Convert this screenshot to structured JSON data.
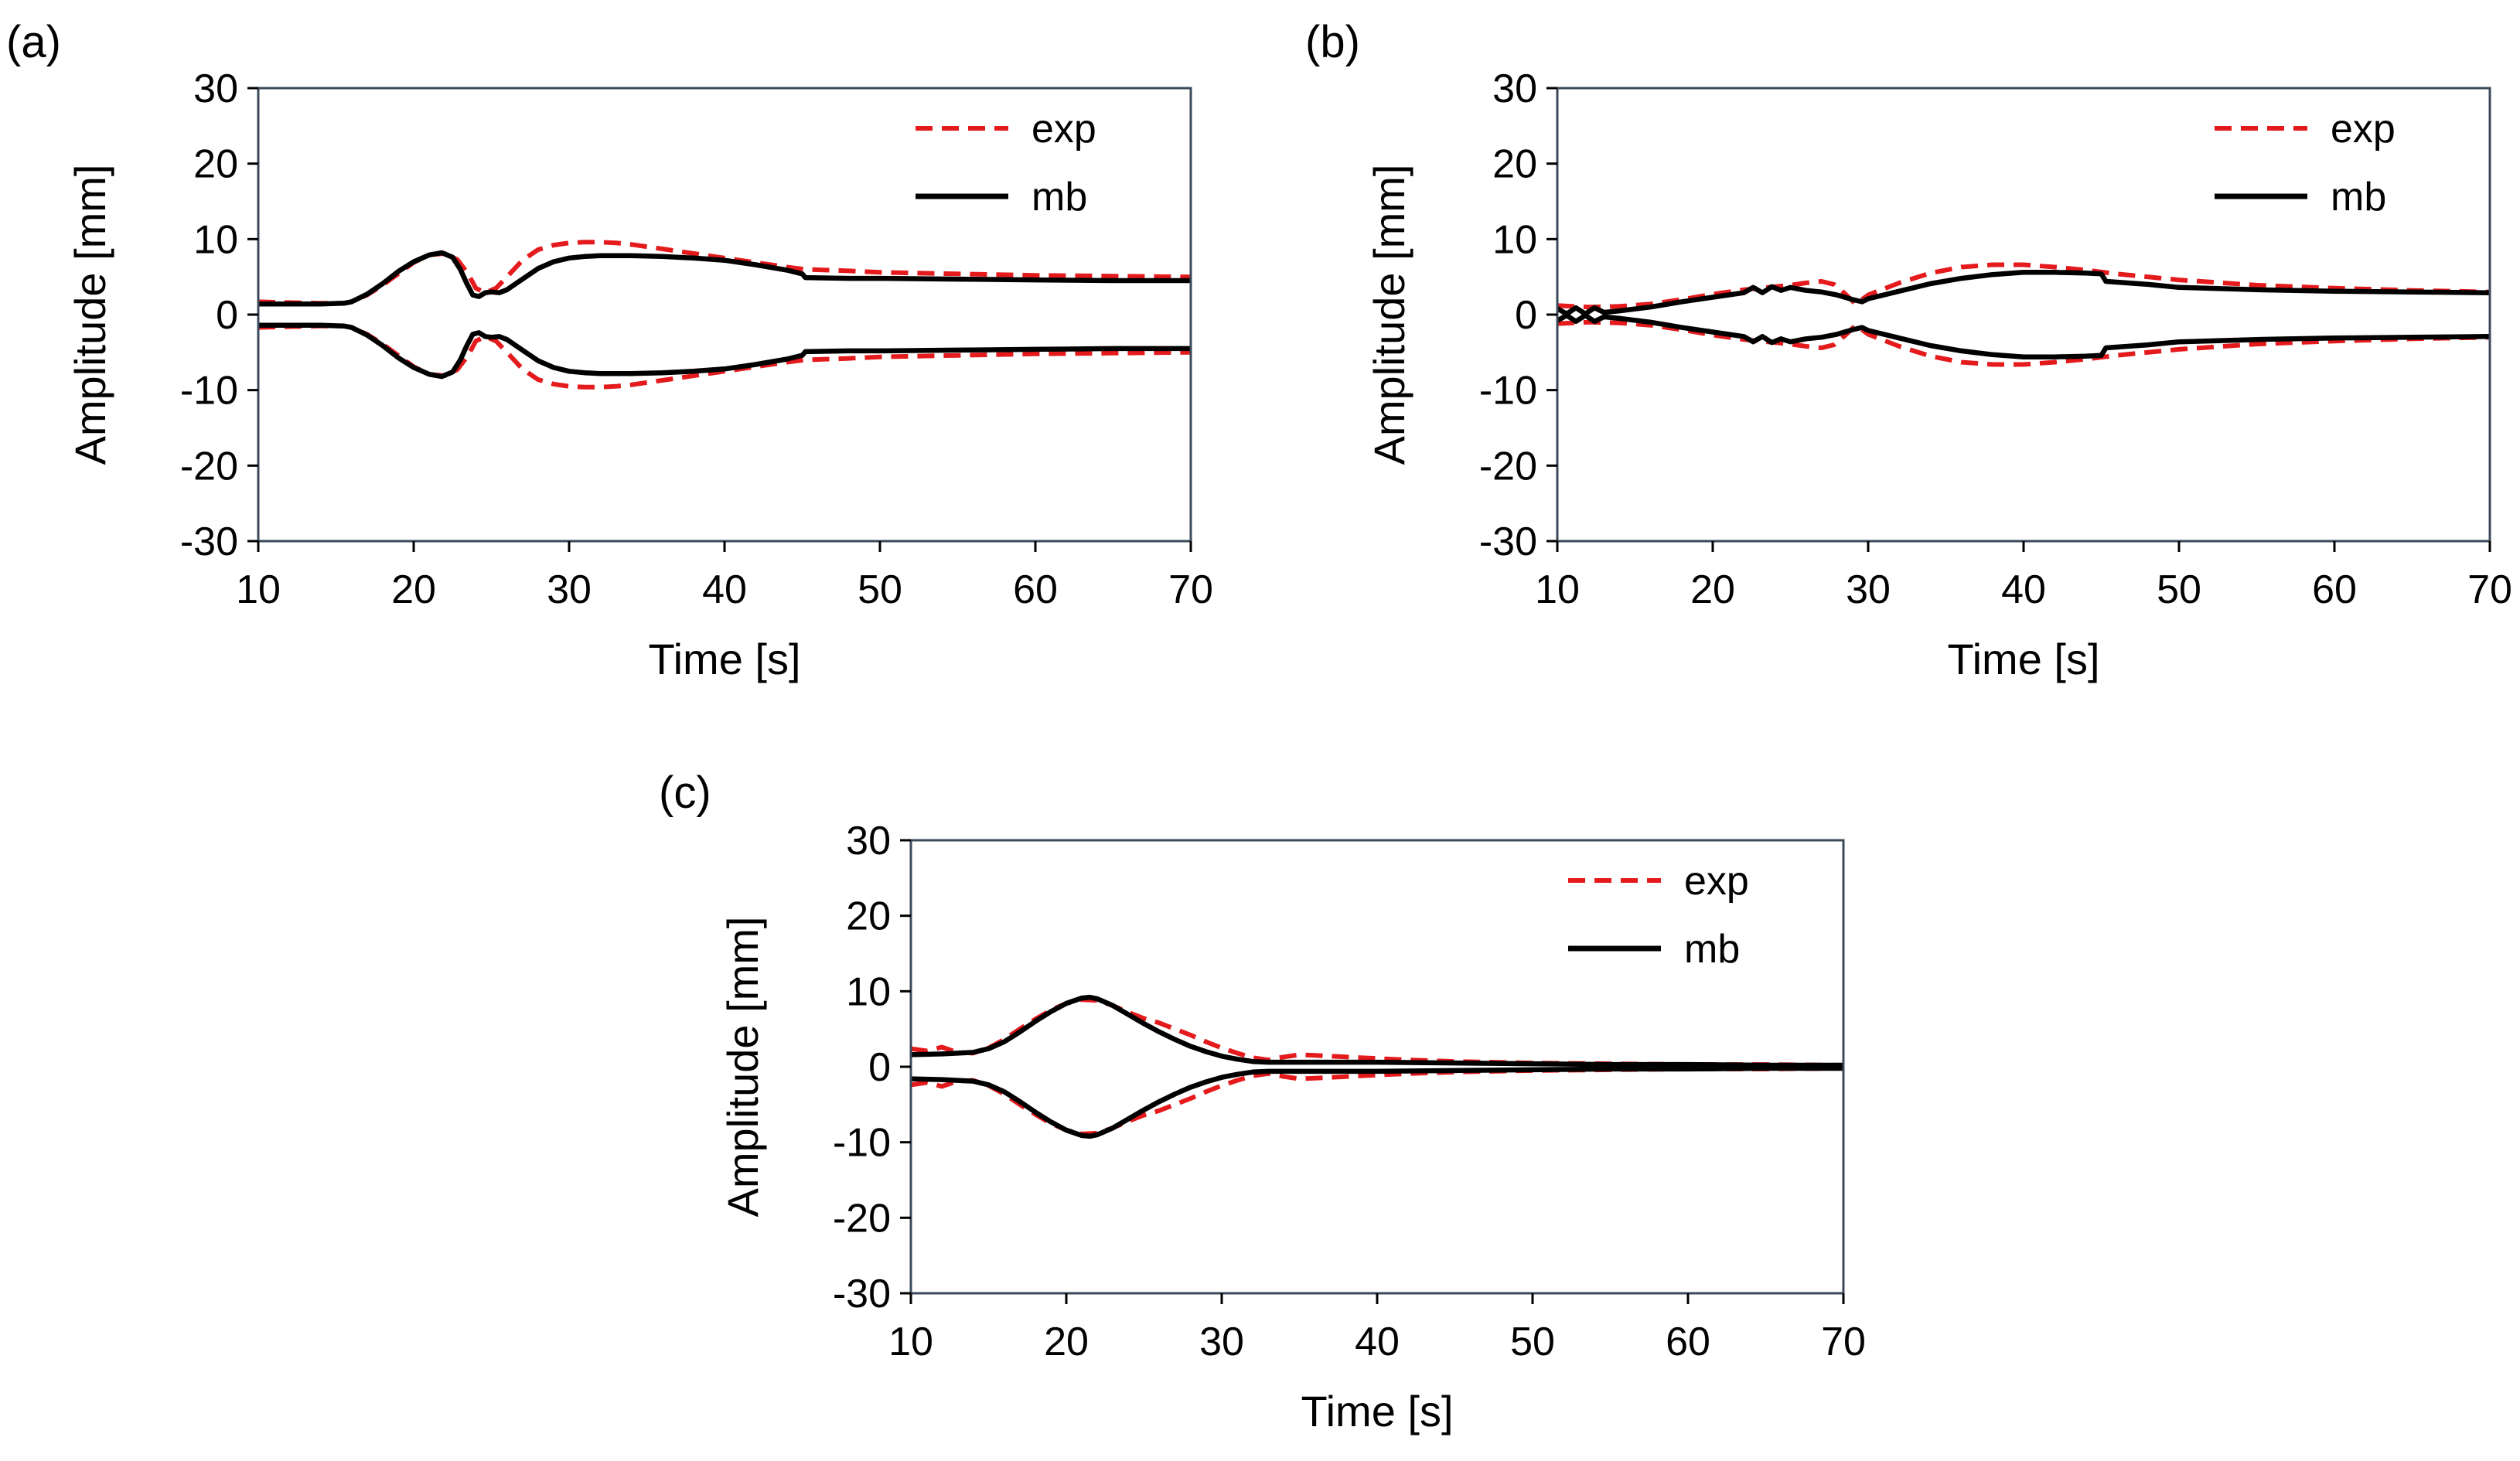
{
  "chart_data": [
    {
      "panel": "(a)",
      "type": "line",
      "xlabel": "Time [s]",
      "ylabel": "Amplitude [mm]",
      "xlim": [
        10,
        70
      ],
      "ylim": [
        -30,
        30
      ],
      "xticks": [
        10,
        20,
        30,
        40,
        50,
        60,
        70
      ],
      "yticks": [
        -30,
        -20,
        -10,
        0,
        10,
        20,
        30
      ],
      "legend": {
        "position": "top-right",
        "entries": [
          "exp",
          "mb"
        ]
      },
      "colors": {
        "exp": "#e41a1c",
        "mb": "#000000"
      },
      "series": [
        {
          "name": "exp",
          "style": "dashed",
          "mirror": true,
          "x": [
            10,
            12,
            14,
            15.5,
            16,
            17,
            18,
            19,
            20,
            21,
            22,
            22.8,
            23.5,
            24,
            24.6,
            25.3,
            26,
            27,
            28,
            29,
            30,
            31,
            32,
            33,
            34,
            35,
            36,
            38,
            40,
            42,
            44,
            45.2,
            48,
            50,
            55,
            60,
            65,
            70
          ],
          "y": [
            1.7,
            1.6,
            1.5,
            1.5,
            1.7,
            2.6,
            3.9,
            5.4,
            6.9,
            7.9,
            8.1,
            7.3,
            5.4,
            3.5,
            2.9,
            3.5,
            5,
            7.2,
            8.6,
            9.2,
            9.5,
            9.6,
            9.6,
            9.5,
            9.3,
            9,
            8.7,
            8.1,
            7.5,
            6.9,
            6.3,
            6,
            5.8,
            5.6,
            5.4,
            5.2,
            5.1,
            5
          ]
        },
        {
          "name": "mb",
          "style": "solid",
          "mirror": true,
          "x": [
            10,
            12,
            14,
            15.5,
            16,
            17,
            18,
            19,
            20,
            21,
            21.8,
            22.5,
            23,
            23.4,
            23.8,
            24.2,
            24.6,
            25,
            25.5,
            26,
            27,
            28,
            29,
            30,
            31,
            32,
            33,
            34,
            36,
            38,
            40,
            42,
            44,
            45,
            45.2,
            48,
            50,
            55,
            60,
            65,
            70
          ],
          "y": [
            1.4,
            1.4,
            1.4,
            1.5,
            1.7,
            2.7,
            4.1,
            5.7,
            7,
            7.9,
            8.2,
            7.6,
            6,
            4.2,
            2.6,
            2.4,
            2.9,
            3,
            2.9,
            3.3,
            4.7,
            6.1,
            7,
            7.5,
            7.7,
            7.8,
            7.8,
            7.8,
            7.7,
            7.5,
            7.2,
            6.6,
            5.9,
            5.4,
            4.9,
            4.8,
            4.8,
            4.7,
            4.6,
            4.5,
            4.5
          ]
        }
      ]
    },
    {
      "panel": "(b)",
      "type": "line",
      "xlabel": "Time [s]",
      "ylabel": "Amplitude [mm]",
      "xlim": [
        10,
        70
      ],
      "ylim": [
        -30,
        30
      ],
      "xticks": [
        10,
        20,
        30,
        40,
        50,
        60,
        70
      ],
      "yticks": [
        -30,
        -20,
        -10,
        0,
        10,
        20,
        30
      ],
      "legend": {
        "position": "top-right",
        "entries": [
          "exp",
          "mb"
        ]
      },
      "colors": {
        "exp": "#e41a1c",
        "mb": "#000000"
      },
      "series": [
        {
          "name": "exp",
          "style": "dashed",
          "mirror": true,
          "x": [
            10,
            12,
            14,
            16,
            18,
            20,
            22,
            23,
            24,
            25,
            26,
            27,
            27.8,
            28.5,
            29.2,
            30,
            32,
            34,
            36,
            38,
            40,
            42,
            44,
            46,
            50,
            55,
            60,
            65,
            70
          ],
          "y": [
            1.2,
            1,
            1.1,
            1.4,
            2,
            2.7,
            3.3,
            3.5,
            3.7,
            3.9,
            4.2,
            4.4,
            4,
            2.8,
            1.4,
            2.6,
            4.2,
            5.5,
            6.3,
            6.6,
            6.6,
            6.3,
            5.9,
            5.4,
            4.6,
            3.9,
            3.5,
            3.2,
            3
          ]
        },
        {
          "name": "mb",
          "style": "solid",
          "mirror": true,
          "x": [
            10,
            10.6,
            11.2,
            11.8,
            12.4,
            13,
            14,
            16,
            18,
            20,
            22,
            22.6,
            23.2,
            23.8,
            24.4,
            25,
            26,
            27,
            28,
            29,
            29.6,
            30,
            32,
            34,
            36,
            38,
            40,
            42,
            44,
            45,
            45.3,
            48,
            50,
            55,
            60,
            65,
            70
          ],
          "y": [
            0.8,
            0.1,
            0.9,
            0.1,
            0.9,
            0.3,
            0.5,
            1,
            1.7,
            2.3,
            2.9,
            3.6,
            2.9,
            3.7,
            3.2,
            3.6,
            3.2,
            3,
            2.6,
            2,
            1.7,
            2.1,
            3.1,
            4.1,
            4.8,
            5.3,
            5.6,
            5.6,
            5.5,
            5.4,
            4.4,
            4,
            3.6,
            3.3,
            3.1,
            3,
            2.9
          ]
        }
      ]
    },
    {
      "panel": "(c)",
      "type": "line",
      "xlabel": "Time [s]",
      "ylabel": "Amplitude [mm]",
      "xlim": [
        10,
        70
      ],
      "ylim": [
        -30,
        30
      ],
      "xticks": [
        10,
        20,
        30,
        40,
        50,
        60,
        70
      ],
      "yticks": [
        -30,
        -20,
        -10,
        0,
        10,
        20,
        30
      ],
      "legend": {
        "position": "top-right",
        "entries": [
          "exp",
          "mb"
        ]
      },
      "colors": {
        "exp": "#e41a1c",
        "mb": "#000000"
      },
      "series": [
        {
          "name": "exp",
          "style": "dashed",
          "mirror": true,
          "x": [
            10,
            11,
            12,
            13,
            14,
            15,
            16,
            17,
            18,
            19,
            20,
            21,
            22,
            23,
            24,
            25,
            26,
            27,
            28,
            29,
            30,
            31,
            32,
            33,
            34,
            35,
            36,
            38,
            40,
            42,
            45,
            50,
            55,
            60,
            65,
            70
          ],
          "y": [
            2.4,
            2.1,
            2.6,
            1.9,
            1.8,
            2.5,
            3.6,
            5,
            6.3,
            7.5,
            8.4,
            8.9,
            8.8,
            8.1,
            7.2,
            6.4,
            5.8,
            5,
            4.2,
            3.3,
            2.5,
            1.8,
            1.2,
            0.9,
            1.3,
            1.6,
            1.5,
            1.3,
            1.1,
            0.9,
            0.7,
            0.5,
            0.4,
            0.3,
            0.3,
            0.2
          ]
        },
        {
          "name": "mb",
          "style": "solid",
          "mirror": true,
          "x": [
            10,
            12,
            14,
            15,
            16,
            17,
            18,
            19,
            20,
            21,
            21.5,
            22,
            23,
            24,
            25,
            26,
            27,
            28,
            29,
            30,
            31,
            32,
            33,
            34,
            36,
            38,
            40,
            45,
            50,
            55,
            60,
            65,
            70
          ],
          "y": [
            1.6,
            1.7,
            1.9,
            2.4,
            3.3,
            4.6,
            6,
            7.3,
            8.4,
            9.1,
            9.2,
            9,
            8.1,
            6.9,
            5.7,
            4.6,
            3.6,
            2.7,
            2,
            1.4,
            1,
            0.7,
            0.6,
            0.6,
            0.6,
            0.6,
            0.6,
            0.5,
            0.4,
            0.3,
            0.3,
            0.2,
            0.2
          ]
        }
      ]
    }
  ]
}
